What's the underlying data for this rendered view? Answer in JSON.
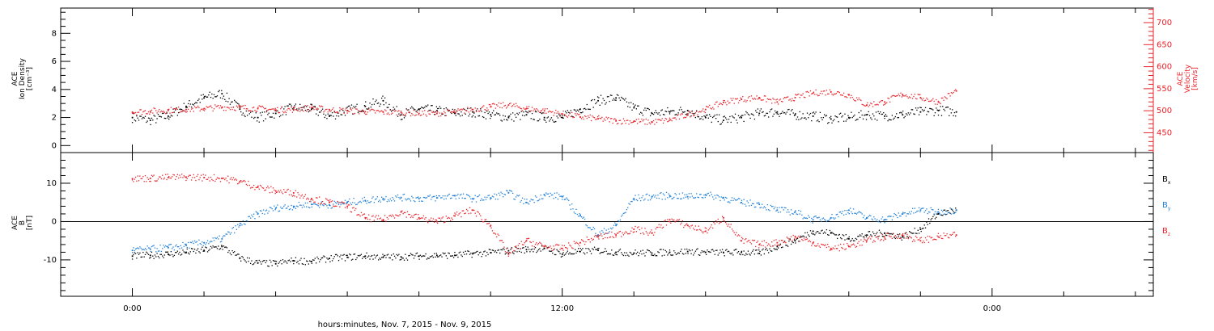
{
  "colors": {
    "black": "#000000",
    "red": "#e8232a",
    "blue": "#1f7fd6",
    "frame": "#000000"
  },
  "x_axis": {
    "label": "hours:minutes, Nov.  7, 2015 - Nov.  9, 2015",
    "range_hours": [
      -2,
      28.5
    ],
    "major_ticks": [
      {
        "hour": 0,
        "label": "0:00"
      },
      {
        "hour": 12,
        "label": "12:00"
      },
      {
        "hour": 24,
        "label": "0:00"
      }
    ],
    "minor_tick_step_hours": 2
  },
  "chart_data": [
    {
      "type": "scatter",
      "panel": "top",
      "ylabel_lines": [
        "ACE",
        "Ion Density",
        "[cm⁻³]"
      ],
      "ylim": [
        -0.5,
        9.8
      ],
      "yticks": [
        0,
        2,
        4,
        6,
        8
      ],
      "right_axis": {
        "ylabel_lines": [
          "ACE",
          "Velocity",
          "[km/s]"
        ],
        "ylim": [
          405,
          733
        ],
        "yticks": [
          450,
          500,
          550,
          600,
          650,
          700
        ],
        "color": "#e8232a"
      },
      "grid": false,
      "series": [
        {
          "color": "#000000",
          "axis": "left",
          "x": [
            0,
            0.5,
            1,
            1.5,
            2,
            2.5,
            3,
            3.5,
            4,
            4.5,
            5,
            5.5,
            6,
            6.5,
            7,
            7.5,
            8,
            8.5,
            9,
            9.5,
            10,
            10.5,
            11,
            11.5,
            12,
            12.5,
            13,
            13.5,
            14,
            14.5,
            15,
            15.5,
            16,
            16.5,
            17,
            17.5,
            18,
            18.5,
            19,
            19.5,
            20,
            20.5,
            21,
            21.5,
            22,
            22.5,
            23
          ],
          "values": [
            2.0,
            1.8,
            2.1,
            2.8,
            3.4,
            3.7,
            2.6,
            2.0,
            2.3,
            2.7,
            2.6,
            2.1,
            2.5,
            2.8,
            3.2,
            2.2,
            2.6,
            2.5,
            2.3,
            2.4,
            2.2,
            2.0,
            2.2,
            2.0,
            2.0,
            2.6,
            3.2,
            3.4,
            2.7,
            2.3,
            2.4,
            2.5,
            2.0,
            1.8,
            2.0,
            2.3,
            2.4,
            2.2,
            2.1,
            1.9,
            2.0,
            2.2,
            2.1,
            2.2,
            2.4,
            2.5,
            2.4
          ]
        },
        {
          "color": "#e8232a",
          "axis": "right",
          "x": [
            0,
            0.5,
            1,
            1.5,
            2,
            2.5,
            3,
            3.5,
            4,
            4.5,
            5,
            5.5,
            6,
            6.5,
            7,
            7.5,
            8,
            8.5,
            9,
            9.5,
            10,
            10.5,
            11,
            11.5,
            12,
            12.5,
            13,
            13.5,
            14,
            14.5,
            15,
            15.5,
            16,
            16.5,
            17,
            17.5,
            18,
            18.5,
            19,
            19.5,
            20,
            20.5,
            21,
            21.5,
            22,
            22.5,
            23
          ],
          "values": [
            497,
            499,
            501,
            503,
            505,
            508,
            507,
            505,
            502,
            503,
            507,
            502,
            500,
            498,
            497,
            496,
            494,
            494,
            497,
            503,
            509,
            513,
            505,
            500,
            493,
            486,
            482,
            477,
            476,
            474,
            479,
            491,
            503,
            519,
            526,
            530,
            520,
            530,
            540,
            543,
            536,
            513,
            520,
            537,
            530,
            520,
            545
          ]
        }
      ]
    },
    {
      "type": "scatter",
      "panel": "bottom",
      "ylabel_lines": [
        "ACE",
        "B",
        "[nT]"
      ],
      "ylim": [
        -19.5,
        18
      ],
      "yticks": [
        -10,
        0,
        10
      ],
      "zero_line": true,
      "grid": false,
      "series": [
        {
          "name": "Bx",
          "color": "#000000",
          "x": [
            0,
            0.5,
            1,
            1.5,
            2,
            2.5,
            3,
            3.5,
            4,
            4.5,
            5,
            5.5,
            6,
            6.5,
            7,
            7.5,
            8,
            8.5,
            9,
            9.5,
            10,
            10.5,
            11,
            11.5,
            12,
            12.5,
            13,
            13.5,
            14,
            14.5,
            15,
            15.5,
            16,
            16.5,
            17,
            17.5,
            18,
            18.5,
            19,
            19.5,
            20,
            20.5,
            21,
            21.5,
            22,
            22.5,
            23
          ],
          "values": [
            -9.0,
            -8.8,
            -8.5,
            -8.0,
            -7.5,
            -6.5,
            -9.5,
            -10.8,
            -11.0,
            -10.2,
            -10.4,
            -9.6,
            -9.3,
            -9.0,
            -9.3,
            -9.2,
            -9.0,
            -8.8,
            -8.8,
            -8.4,
            -8.1,
            -7.6,
            -7.3,
            -7.0,
            -8.5,
            -7.8,
            -7.5,
            -8.0,
            -8.2,
            -8.2,
            -8.0,
            -7.8,
            -8.0,
            -8.1,
            -8.0,
            -8.3,
            -6.5,
            -5.0,
            -2.5,
            -3.0,
            -4.5,
            -3.5,
            -3.0,
            -4.0,
            -2.0,
            2.0,
            3.0
          ]
        },
        {
          "name": "By",
          "color": "#1f7fd6",
          "x": [
            0,
            0.5,
            1,
            1.5,
            2,
            2.5,
            3,
            3.5,
            4,
            4.5,
            5,
            5.5,
            6,
            6.5,
            7,
            7.5,
            8,
            8.5,
            9,
            9.5,
            10,
            10.5,
            11,
            11.5,
            12,
            12.5,
            13,
            13.5,
            14,
            14.5,
            15,
            15.5,
            16,
            16.5,
            17,
            17.5,
            18,
            18.5,
            19,
            19.5,
            20,
            20.5,
            21,
            21.5,
            22,
            22.5,
            23
          ],
          "values": [
            -7.5,
            -7.2,
            -6.8,
            -6.2,
            -5.5,
            -4.5,
            -1.0,
            2.0,
            3.5,
            4.0,
            4.5,
            4.3,
            5.0,
            5.5,
            6.0,
            6.3,
            6.0,
            6.2,
            6.8,
            6.0,
            6.2,
            7.5,
            5.0,
            7.0,
            6.5,
            1.5,
            -3.5,
            -1.0,
            6.0,
            6.5,
            6.8,
            6.5,
            7.0,
            6.2,
            5.0,
            4.5,
            3.0,
            2.5,
            0.5,
            1.0,
            3.0,
            1.0,
            0.5,
            2.0,
            3.0,
            2.5,
            3.0
          ]
        },
        {
          "name": "Bz",
          "color": "#e8232a",
          "x": [
            0,
            0.5,
            1,
            1.5,
            2,
            2.5,
            3,
            3.5,
            4,
            4.5,
            5,
            5.5,
            6,
            6.5,
            7,
            7.5,
            8,
            8.5,
            9,
            9.5,
            10,
            10.5,
            11,
            11.5,
            12,
            12.5,
            13,
            13.5,
            14,
            14.5,
            15,
            15.5,
            16,
            16.5,
            17,
            17.5,
            18,
            18.5,
            19,
            19.5,
            20,
            20.5,
            21,
            21.5,
            22,
            22.5,
            23
          ],
          "values": [
            11.2,
            11.3,
            11.5,
            11.6,
            11.5,
            11.3,
            10.5,
            9.0,
            8.0,
            7.5,
            6.0,
            5.0,
            4.0,
            1.0,
            0.5,
            2.5,
            1.0,
            0.0,
            1.5,
            3.0,
            -1.0,
            -8.5,
            -5.0,
            -6.5,
            -7.0,
            -5.5,
            -4.0,
            -3.5,
            -2.0,
            -3.0,
            0.5,
            -1.0,
            -2.5,
            1.0,
            -5.0,
            -6.0,
            -5.5,
            -4.0,
            -5.5,
            -7.0,
            -6.5,
            -5.0,
            -4.0,
            -3.5,
            -5.0,
            -4.0,
            -3.5
          ]
        }
      ],
      "legend": {
        "placement": "right",
        "entries": [
          {
            "base": "B",
            "sub": "x",
            "color": "#000000"
          },
          {
            "base": "B",
            "sub": "y",
            "color": "#1f7fd6"
          },
          {
            "base": "B",
            "sub": "z",
            "color": "#e8232a"
          }
        ]
      }
    }
  ]
}
